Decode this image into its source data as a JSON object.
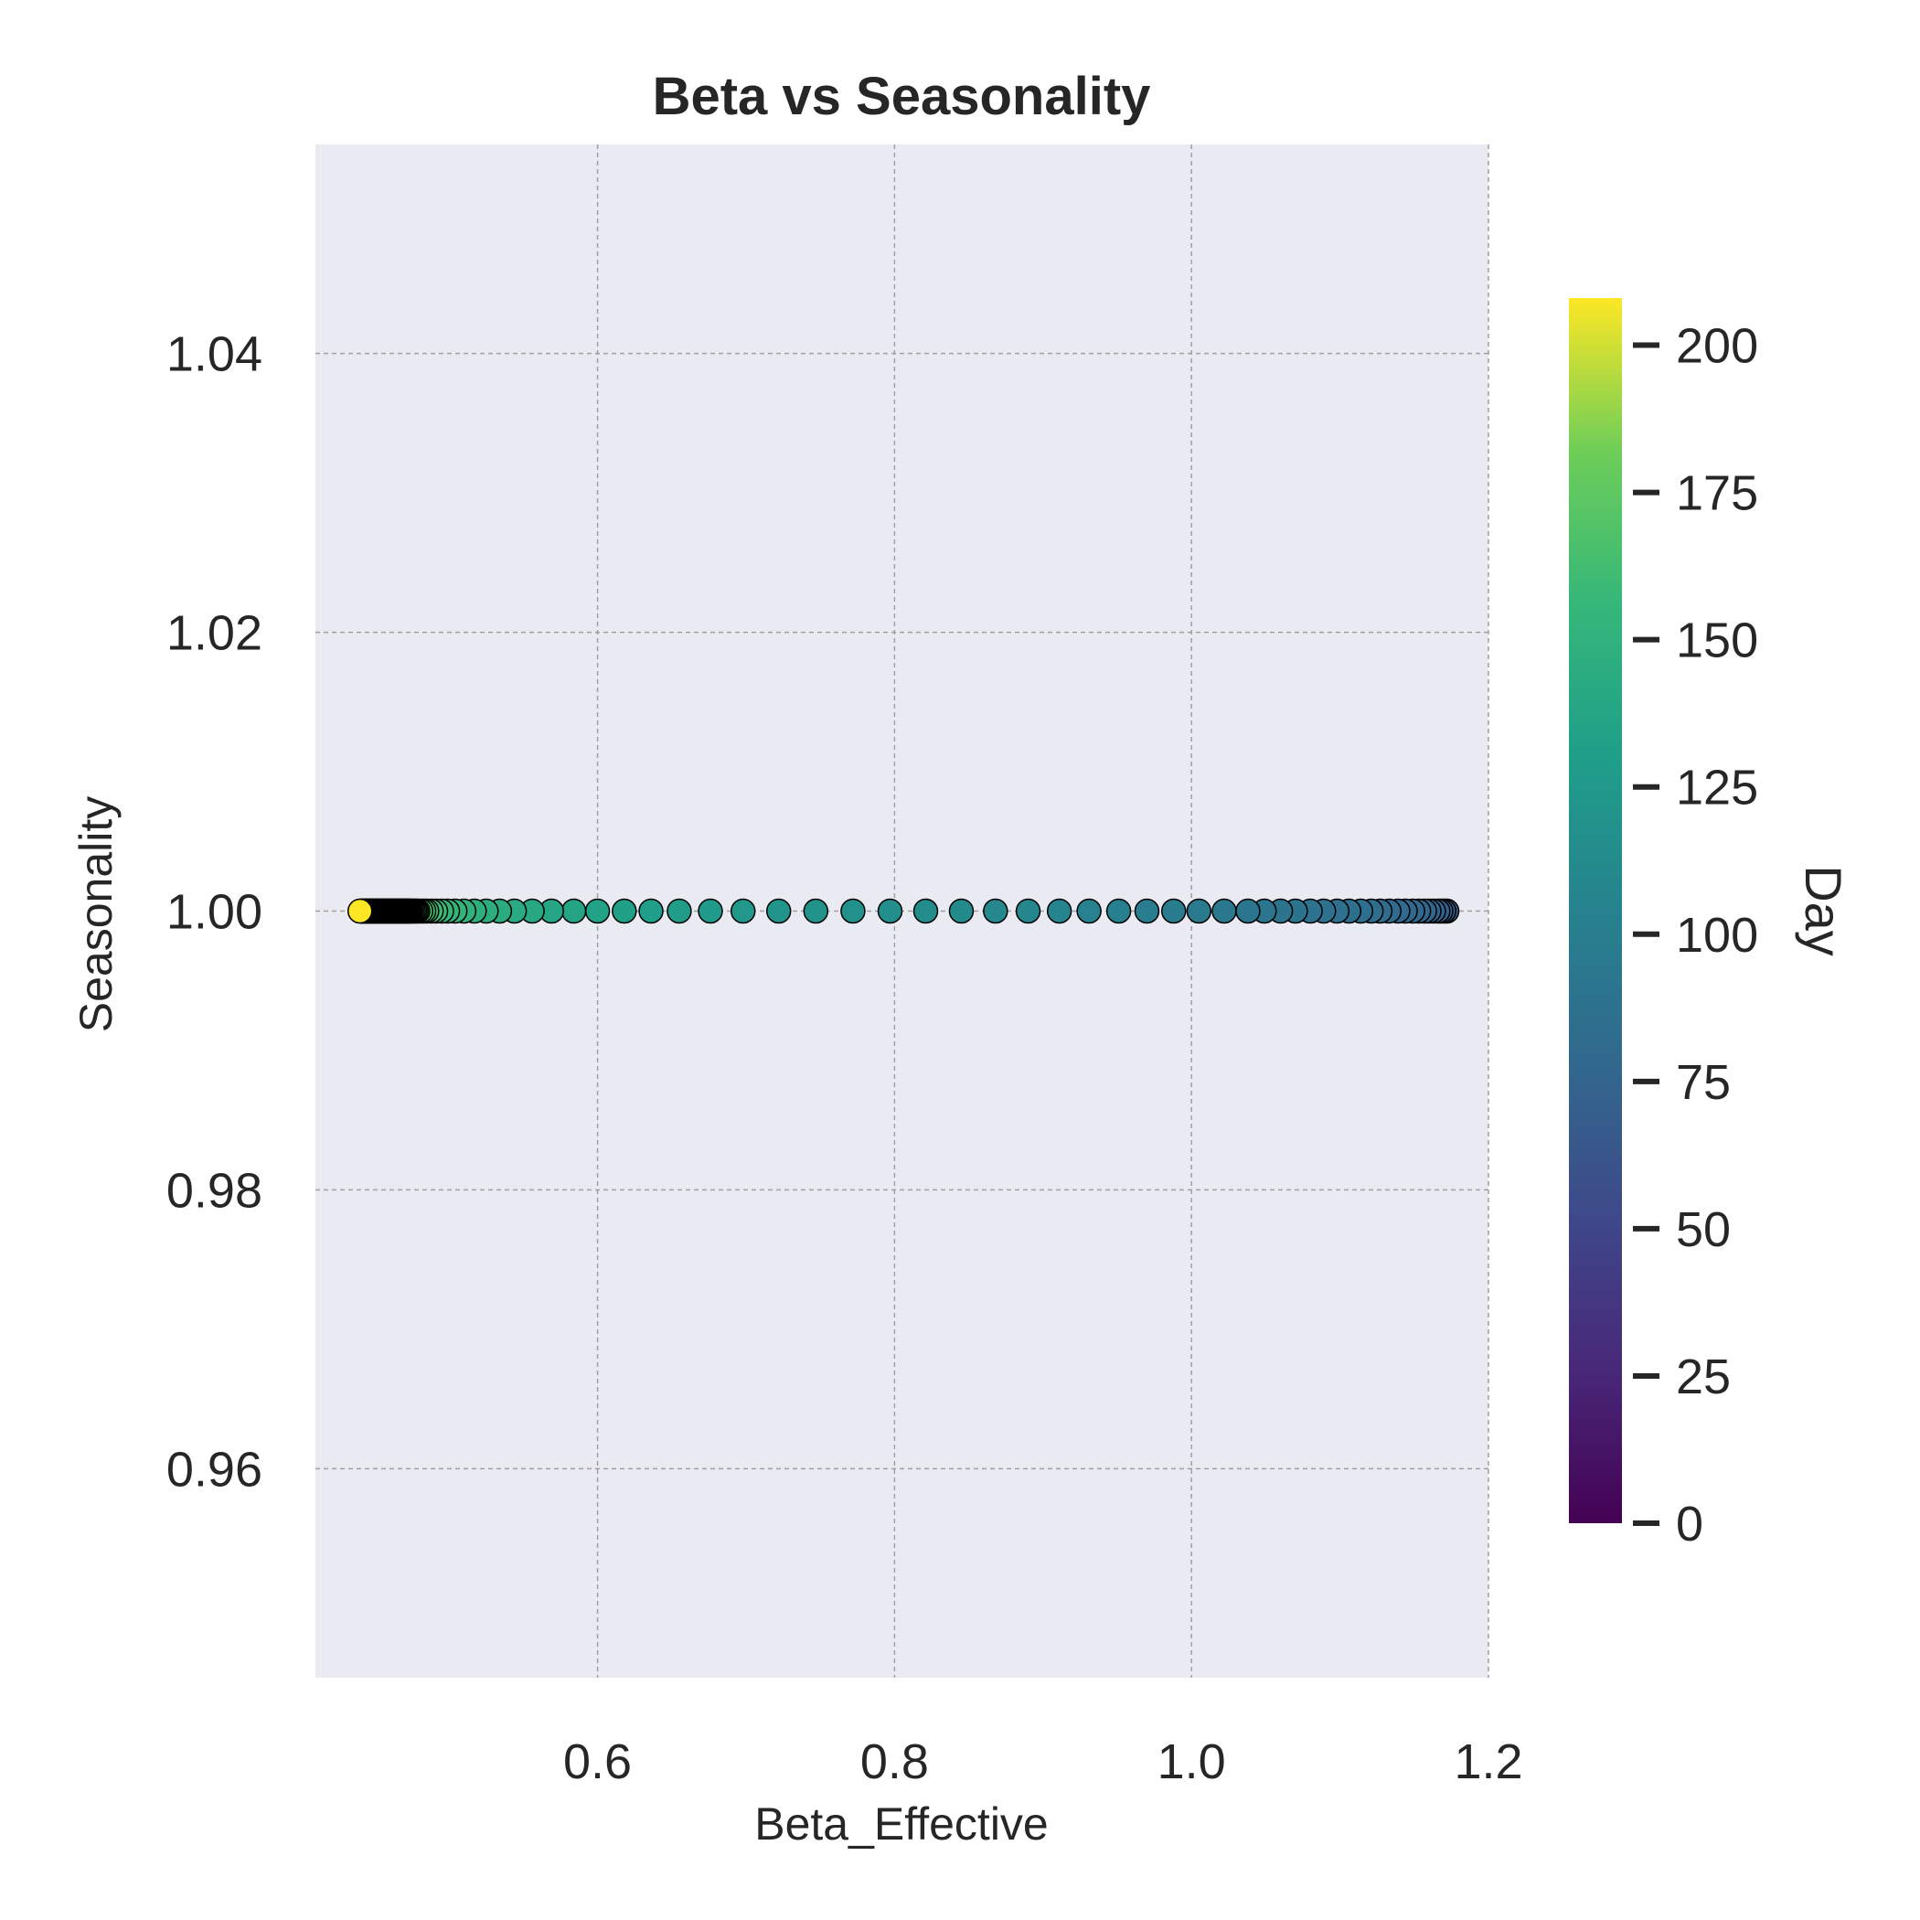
{
  "chart_data": {
    "type": "scatter",
    "title": "Beta vs Seasonality",
    "xlabel": "Beta_Effective",
    "ylabel": "Seasonality",
    "xlim": [
      0.41,
      1.2
    ],
    "ylim": [
      0.945,
      1.055
    ],
    "xticks": [
      0.6,
      0.8,
      1.0,
      1.2
    ],
    "xtick_labels": [
      "0.6",
      "0.8",
      "1.0",
      "1.2"
    ],
    "yticks": [
      0.96,
      0.98,
      1.0,
      1.02,
      1.04
    ],
    "ytick_labels": [
      "0.96",
      "0.98",
      "1.00",
      "1.02",
      "1.04"
    ],
    "grid": true,
    "colormap": "viridis",
    "colorbar": {
      "label": "Day",
      "range": [
        0,
        208
      ],
      "ticks": [
        0,
        25,
        50,
        75,
        100,
        125,
        150,
        175,
        200
      ],
      "tick_labels": [
        "0",
        "25",
        "50",
        "75",
        "100",
        "125",
        "150",
        "175",
        "200"
      ]
    },
    "colors": {
      "plot_background": "#eaeaf2",
      "grid": "#a0a0a0",
      "marker_edge": "#000000",
      "text": "#262626"
    },
    "points": {
      "x": [
        1.172,
        1.17,
        1.168,
        1.166,
        1.163,
        1.16,
        1.157,
        1.153,
        1.149,
        1.144,
        1.139,
        1.133,
        1.127,
        1.121,
        1.114,
        1.106,
        1.098,
        1.089,
        1.08,
        1.07,
        1.06,
        1.049,
        1.038,
        1.022,
        1.005,
        0.988,
        0.97,
        0.951,
        0.931,
        0.911,
        0.89,
        0.868,
        0.845,
        0.821,
        0.797,
        0.772,
        0.747,
        0.722,
        0.698,
        0.676,
        0.655,
        0.636,
        0.618,
        0.6,
        0.584,
        0.569,
        0.556,
        0.544,
        0.534,
        0.525,
        0.517,
        0.51,
        0.504,
        0.499,
        0.495,
        0.491,
        0.488,
        0.485,
        0.483,
        0.481,
        0.479,
        0.478,
        0.477,
        0.476,
        0.475,
        0.474,
        0.4735,
        0.473,
        0.4725,
        0.472,
        0.4715,
        0.471,
        0.4705,
        0.47,
        0.4695,
        0.469,
        0.4685,
        0.468,
        0.4675,
        0.467,
        0.4665,
        0.466,
        0.4655,
        0.465,
        0.4645,
        0.464,
        0.4635,
        0.463,
        0.4625,
        0.462,
        0.4615,
        0.461,
        0.4605,
        0.46,
        0.4595,
        0.459,
        0.4585,
        0.458,
        0.4575,
        0.457,
        0.4565,
        0.456,
        0.4555,
        0.455,
        0.4545,
        0.454,
        0.4535,
        0.453,
        0.4525,
        0.452,
        0.4515,
        0.451,
        0.4505,
        0.45,
        0.4495,
        0.449,
        0.4485,
        0.448,
        0.4475,
        0.447,
        0.4465,
        0.446,
        0.4455,
        0.445,
        0.4445,
        0.444,
        0.4435,
        0.443,
        0.4425,
        0.442,
        0.4415,
        0.441,
        0.4405,
        0.44
      ],
      "y": 1.0,
      "day": [
        70,
        71,
        72,
        73,
        74,
        75,
        76,
        77,
        78,
        79,
        80,
        81,
        82,
        83,
        84,
        85,
        86,
        87,
        88,
        89,
        90,
        91,
        92,
        94,
        96,
        98,
        100,
        102,
        104,
        106,
        108,
        110,
        112,
        114,
        116,
        118,
        120,
        122,
        124,
        126,
        128,
        130,
        132,
        134,
        136,
        138,
        140,
        142,
        144,
        146,
        148,
        150,
        152,
        154,
        156,
        158,
        160,
        162,
        164,
        166,
        168,
        170,
        172,
        174,
        176,
        178,
        180,
        182,
        184,
        186,
        188,
        190,
        192,
        194,
        196,
        198,
        200,
        202,
        204,
        206,
        208
      ],
      "note_index": "day[i] corresponds to x[i]; remaining x values beyond day list are rendered with the final day value"
    }
  }
}
